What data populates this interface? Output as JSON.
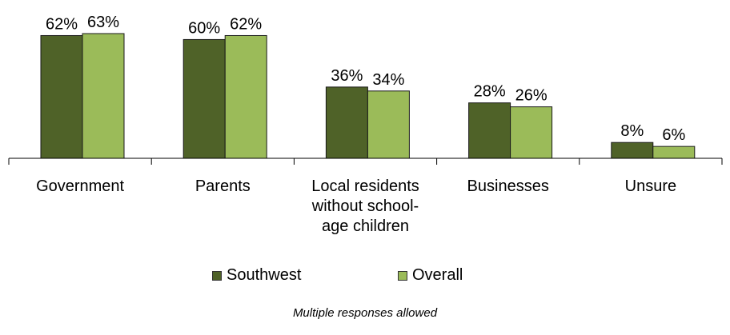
{
  "chart_data": {
    "type": "bar",
    "categories": [
      [
        "Government"
      ],
      [
        "Parents"
      ],
      [
        "Local residents",
        "without school-",
        "age children"
      ],
      [
        "Businesses"
      ],
      [
        "Unsure"
      ]
    ],
    "series": [
      {
        "name": "Southwest",
        "values": [
          62,
          60,
          36,
          28,
          8
        ],
        "labels": [
          "62%",
          "60%",
          "36%",
          "28%",
          "8%"
        ],
        "color": "#4f6228"
      },
      {
        "name": "Overall",
        "values": [
          63,
          62,
          34,
          26,
          6
        ],
        "labels": [
          "63%",
          "62%",
          "34%",
          "26%",
          "6%"
        ],
        "color": "#9bbb59"
      }
    ],
    "ylim": [
      0,
      63
    ],
    "title": "",
    "xlabel": "",
    "ylabel": "",
    "legend_position": "bottom",
    "note": "Multiple responses allowed"
  }
}
